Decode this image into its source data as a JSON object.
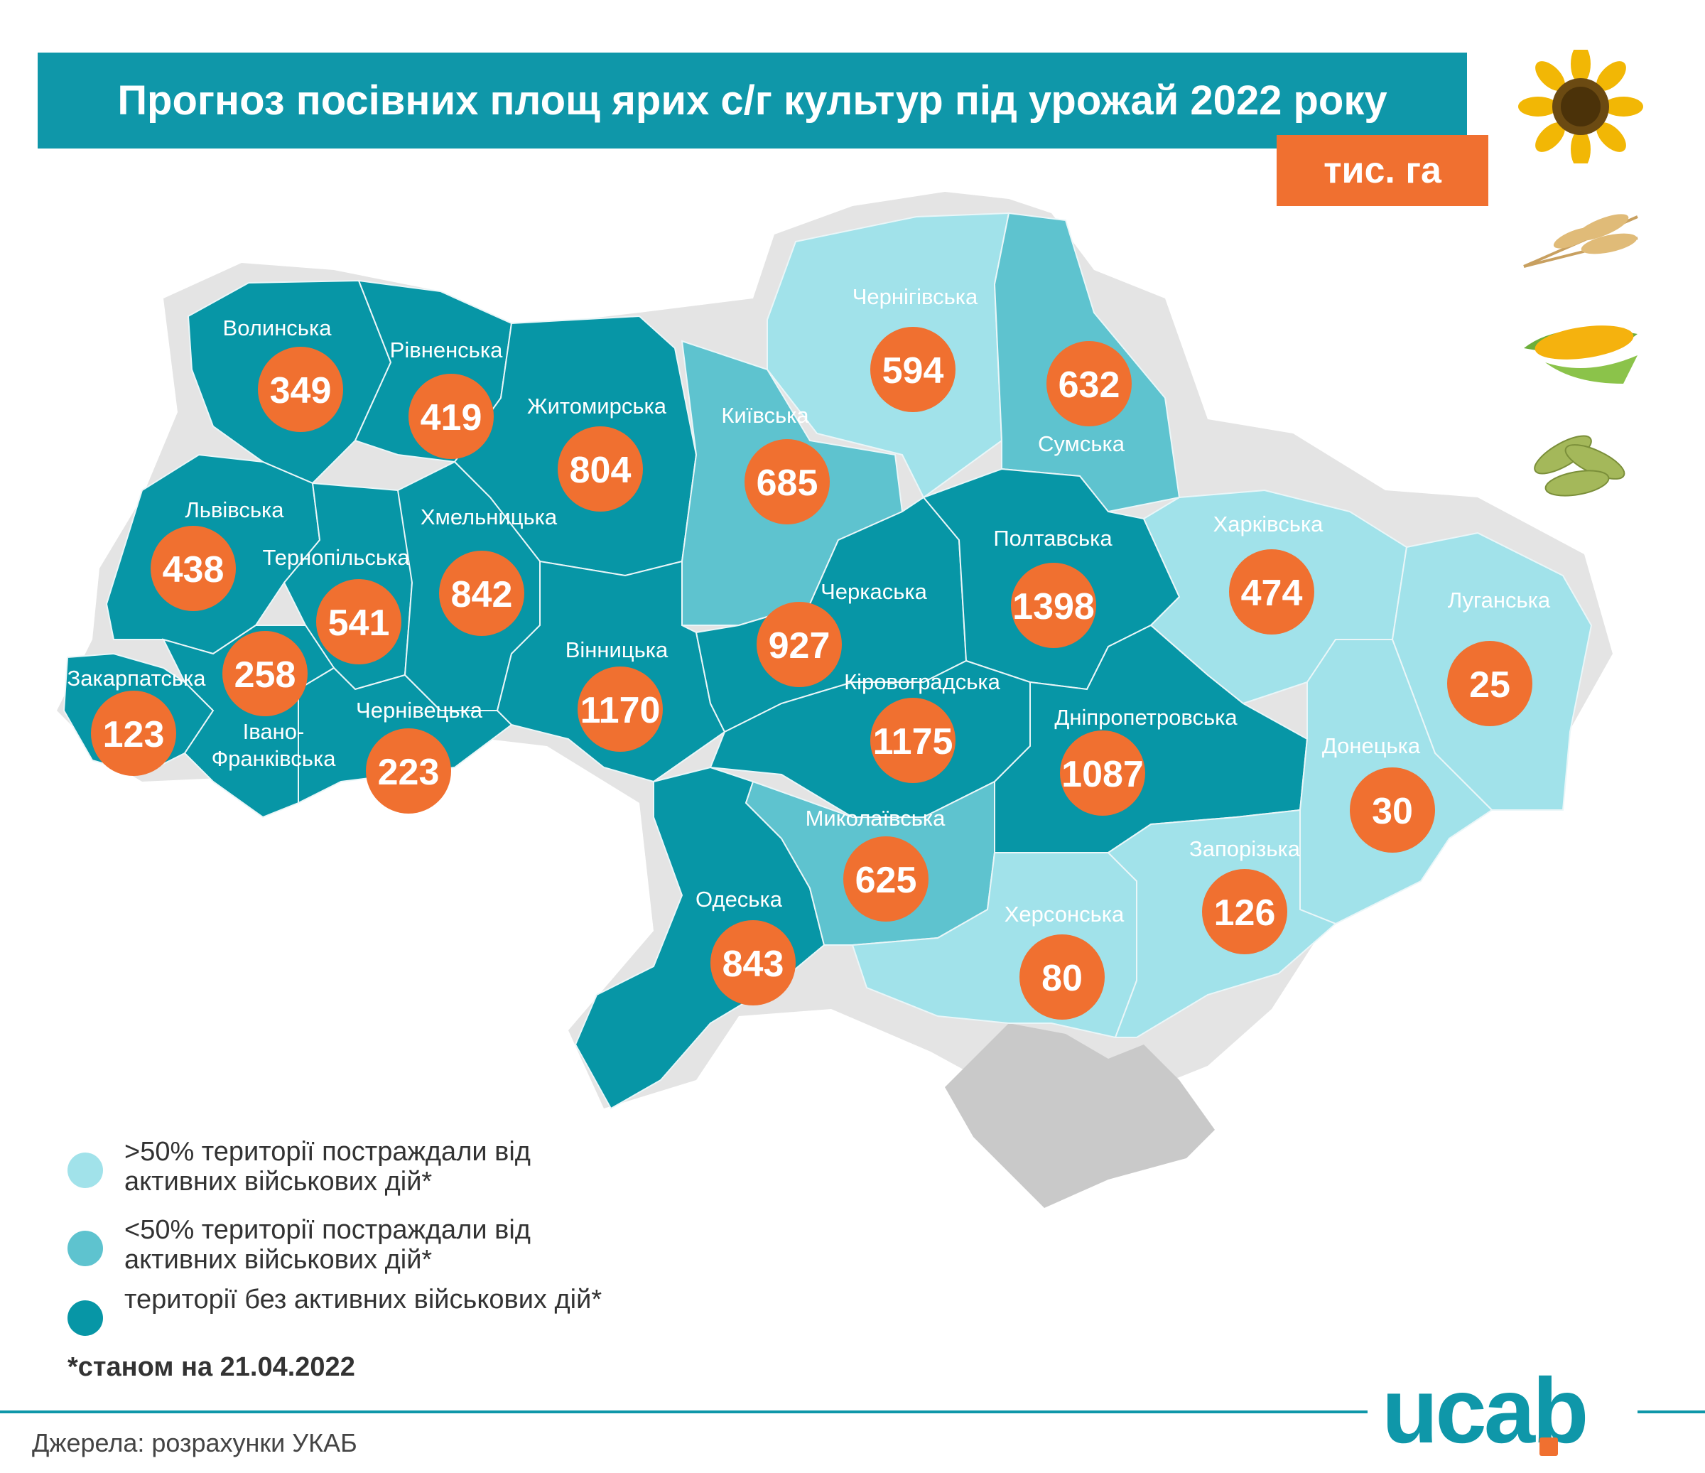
{
  "title": "Прогноз посівних площ ярих с/г культур під урожай 2022 року",
  "unit": "тис. га",
  "colors": {
    "severe": "#a1e2ea",
    "partial": "#5ec3cf",
    "none": "#0796a6",
    "crimea": "#c9c9c9",
    "accent": "#f07030",
    "header": "#0f97a9"
  },
  "regions": [
    {
      "name": "Волинська",
      "value": "349",
      "status": "none"
    },
    {
      "name": "Рівненська",
      "value": "419",
      "status": "none"
    },
    {
      "name": "Житомирська",
      "value": "804",
      "status": "none"
    },
    {
      "name": "Київська",
      "value": "685",
      "status": "partial"
    },
    {
      "name": "Чернігівська",
      "value": "594",
      "status": "severe"
    },
    {
      "name": "Сумська",
      "value": "632",
      "status": "partial"
    },
    {
      "name": "Львівська",
      "value": "438",
      "status": "none"
    },
    {
      "name": "Тернопільська",
      "value": "541",
      "status": "none"
    },
    {
      "name": "Хмельницька",
      "value": "842",
      "status": "none"
    },
    {
      "name": "Закарпатська",
      "value": "123",
      "status": "none"
    },
    {
      "name": "Івано-Франківська",
      "value": "258",
      "status": "none"
    },
    {
      "name": "Чернівецька",
      "value": "223",
      "status": "none"
    },
    {
      "name": "Вінницька",
      "value": "1170",
      "status": "none"
    },
    {
      "name": "Черкаська",
      "value": "927",
      "status": "none"
    },
    {
      "name": "Полтавська",
      "value": "1398",
      "status": "none"
    },
    {
      "name": "Харківська",
      "value": "474",
      "status": "severe"
    },
    {
      "name": "Луганська",
      "value": "25",
      "status": "severe"
    },
    {
      "name": "Кіровоградська",
      "value": "1175",
      "status": "none"
    },
    {
      "name": "Дніпропетровська",
      "value": "1087",
      "status": "none"
    },
    {
      "name": "Донецька",
      "value": "30",
      "status": "severe"
    },
    {
      "name": "Одеська",
      "value": "843",
      "status": "none"
    },
    {
      "name": "Миколаївська",
      "value": "625",
      "status": "partial"
    },
    {
      "name": "Херсонська",
      "value": "80",
      "status": "severe"
    },
    {
      "name": "Запорізька",
      "value": "126",
      "status": "severe"
    }
  ],
  "legend": [
    {
      "text": ">50% території постраждали від активних військових дій*",
      "color": "#a1e2ea"
    },
    {
      "text": "<50% території постраждали від активних військових дій*",
      "color": "#5ec3cf"
    },
    {
      "text": "території без активних військових дій*",
      "color": "#0796a6"
    }
  ],
  "note": "*станом на 21.04.2022",
  "source": "Джерела: розрахунки УКАБ",
  "logo": "ucab",
  "crop_icons": [
    "sunflower-icon",
    "wheat-icon",
    "corn-icon",
    "soybean-icon"
  ]
}
